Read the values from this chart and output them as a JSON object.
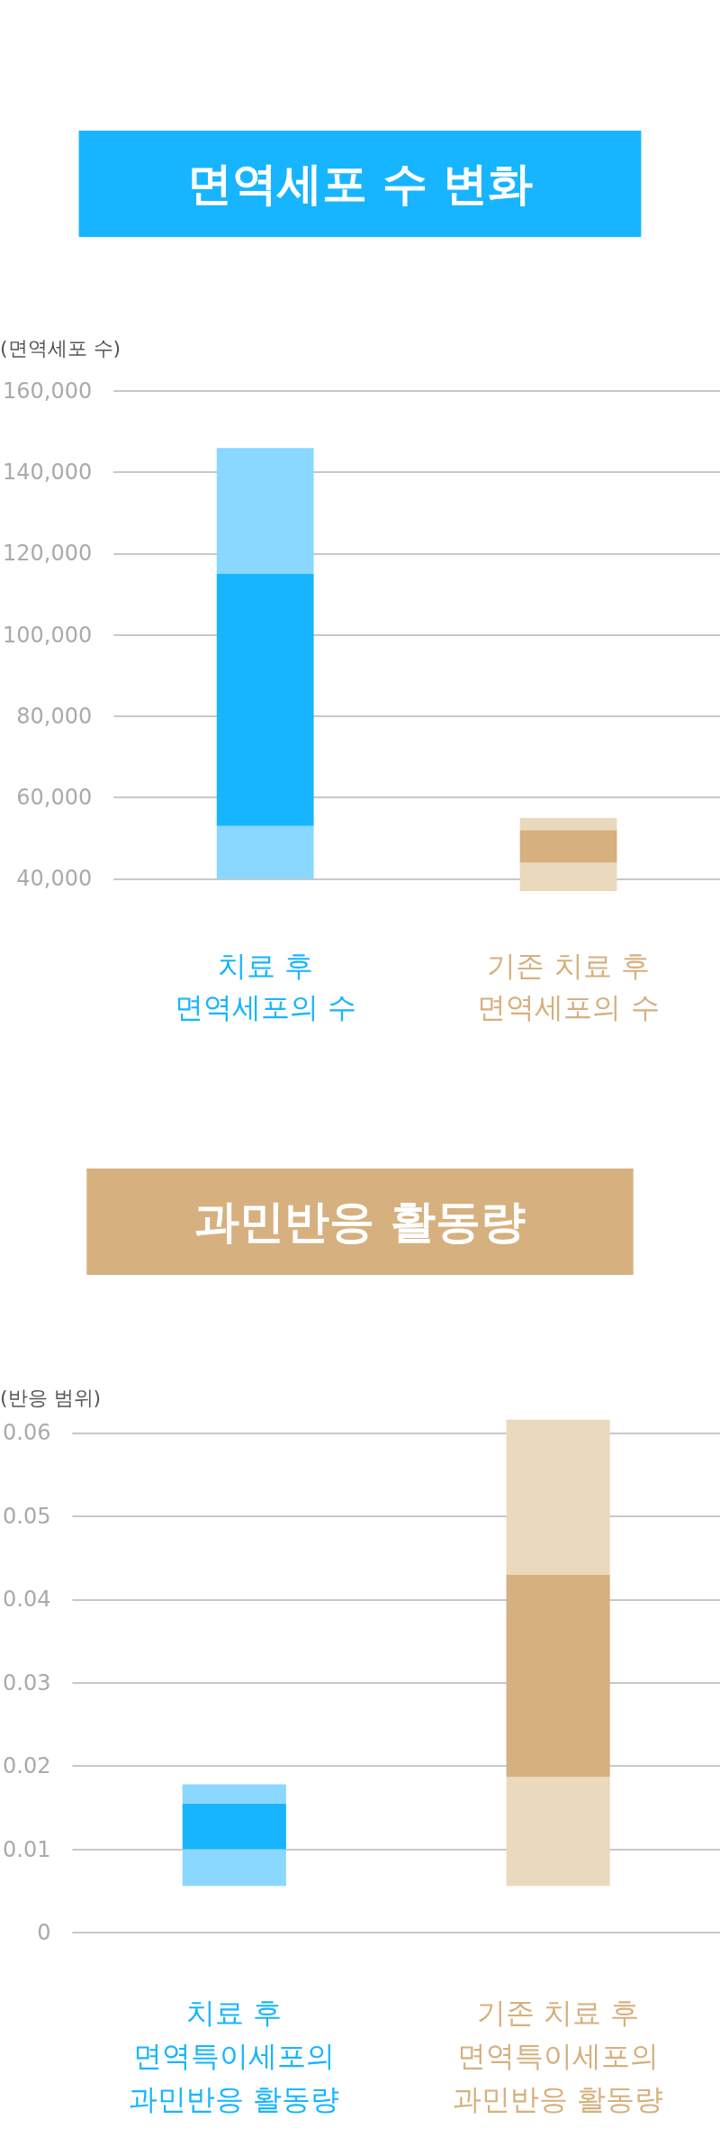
{
  "chart_data": [
    {
      "type": "bar",
      "title": "면역세포 수 변화",
      "ylabel": "(면역세포 수)",
      "categories": [
        "치료 후\n면역세포의 수",
        "기존 치료 후\n면역세포의 수"
      ],
      "series": [
        {
          "colors": [
            "#8ad8ff",
            "#ebd9bd"
          ],
          "base": [
            40000,
            37000
          ],
          "values": [
            13000,
            7000
          ]
        },
        {
          "colors": [
            "#17b5ff",
            "#d6b07e"
          ],
          "base": [
            53000,
            44000
          ],
          "values": [
            62000,
            8000
          ]
        },
        {
          "colors": [
            "#8ad8ff",
            "#ebd9bd"
          ],
          "base": [
            115000,
            52000
          ],
          "values": [
            31000,
            3000
          ]
        }
      ],
      "ylim": [
        37000,
        160000
      ],
      "yticks": [
        {
          "value": 40000,
          "label": "40,000"
        },
        {
          "value": 60000,
          "label": "60,000"
        },
        {
          "value": 80000,
          "label": "80,000"
        },
        {
          "value": 100000,
          "label": "100,000"
        },
        {
          "value": 120000,
          "label": "120,000"
        },
        {
          "value": 140000,
          "label": "140,000"
        },
        {
          "value": 160000,
          "label": "160,000"
        }
      ],
      "grid": "y"
    },
    {
      "type": "bar",
      "title": "과민반응 활동량",
      "ylabel": "(반응 범위)",
      "categories": [
        "치료 후\n면역특이세포의\n과민반응 활동량",
        "기존 치료 후\n면역특이세포의\n과민반응 활동량"
      ],
      "series": [
        {
          "colors": [
            "#8ad8ff",
            "#ebd9bd"
          ],
          "base": [
            0.0056,
            0.0056
          ],
          "values": [
            0.0044,
            0.0131
          ]
        },
        {
          "colors": [
            "#17b5ff",
            "#d6b07e"
          ],
          "base": [
            0.01,
            0.0187
          ],
          "values": [
            0.0055,
            0.0243
          ]
        },
        {
          "colors": [
            "#8ad8ff",
            "#ebd9bd"
          ],
          "base": [
            0.0155,
            0.043
          ],
          "values": [
            0.0023,
            0.0186
          ]
        }
      ],
      "ylim": [
        0,
        0.062
      ],
      "yticks": [
        0,
        0.01,
        0.02,
        0.03,
        0.04,
        0.05,
        0.06
      ],
      "grid": "y"
    }
  ]
}
